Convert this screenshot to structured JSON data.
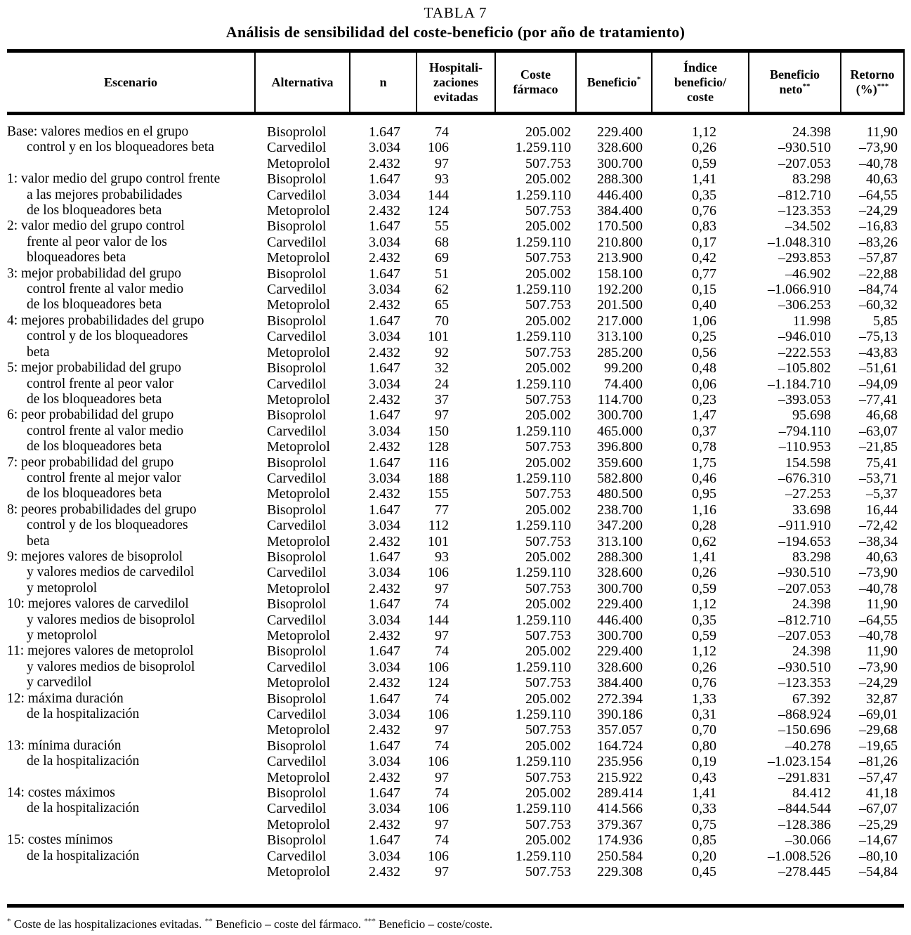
{
  "page": {
    "title": "TABLA 7",
    "subtitle": "Análisis de sensibilidad del coste-beneficio (por año de tratamiento)"
  },
  "colors": {
    "text": "#000000",
    "background": "#ffffff"
  },
  "table": {
    "columns": [
      {
        "id": "escenario",
        "lines": [
          "Escenario"
        ],
        "sup": ""
      },
      {
        "id": "alternativa",
        "lines": [
          "Alternativa"
        ],
        "sup": ""
      },
      {
        "id": "n",
        "lines": [
          "n"
        ],
        "sup": ""
      },
      {
        "id": "hospitalizaciones-evitadas",
        "lines": [
          "Hospitali-",
          "zaciones",
          "evitadas"
        ],
        "sup": ""
      },
      {
        "id": "coste-farmaco",
        "lines": [
          "Coste",
          "fármaco"
        ],
        "sup": ""
      },
      {
        "id": "beneficio",
        "lines": [
          "Beneficio"
        ],
        "sup": "*"
      },
      {
        "id": "indice-beneficio-coste",
        "lines": [
          "Índice",
          "beneficio/",
          "coste"
        ],
        "sup": ""
      },
      {
        "id": "beneficio-neto",
        "lines": [
          "Beneficio",
          "neto"
        ],
        "sup": "**"
      },
      {
        "id": "retorno",
        "lines": [
          "Retorno",
          "(%)"
        ],
        "sup": "***"
      }
    ],
    "scenarios": [
      {
        "label_lines": [
          "Base: valores medios en el grupo",
          "control y en los bloqueadores beta"
        ],
        "rows": [
          [
            "Bisoprolol",
            "1.647",
            "74",
            "205.002",
            "229.400",
            "1,12",
            "24.398",
            "11,90"
          ],
          [
            "Carvedilol",
            "3.034",
            "106",
            "1.259.110",
            "328.600",
            "0,26",
            "–930.510",
            "–73,90"
          ],
          [
            "Metoprolol",
            "2.432",
            "97",
            "507.753",
            "300.700",
            "0,59",
            "–207.053",
            "–40,78"
          ]
        ]
      },
      {
        "label_lines": [
          "1: valor medio del grupo control frente",
          "a las mejores probabilidades",
          "de los bloqueadores beta"
        ],
        "rows": [
          [
            "Bisoprolol",
            "1.647",
            "93",
            "205.002",
            "288.300",
            "1,41",
            "83.298",
            "40,63"
          ],
          [
            "Carvedilol",
            "3.034",
            "144",
            "1.259.110",
            "446.400",
            "0,35",
            "–812.710",
            "–64,55"
          ],
          [
            "Metoprolol",
            "2.432",
            "124",
            "507.753",
            "384.400",
            "0,76",
            "–123.353",
            "–24,29"
          ]
        ]
      },
      {
        "label_lines": [
          "2: valor medio del grupo control",
          "frente al peor valor de los",
          "bloqueadores beta"
        ],
        "rows": [
          [
            "Bisoprolol",
            "1.647",
            "55",
            "205.002",
            "170.500",
            "0,83",
            "–34.502",
            "–16,83"
          ],
          [
            "Carvedilol",
            "3.034",
            "68",
            "1.259.110",
            "210.800",
            "0,17",
            "–1.048.310",
            "–83,26"
          ],
          [
            "Metoprolol",
            "2.432",
            "69",
            "507.753",
            "213.900",
            "0,42",
            "–293.853",
            "–57,87"
          ]
        ]
      },
      {
        "label_lines": [
          "3: mejor probabilidad del grupo",
          "control frente al valor medio",
          "de los bloqueadores beta"
        ],
        "rows": [
          [
            "Bisoprolol",
            "1.647",
            "51",
            "205.002",
            "158.100",
            "0,77",
            "–46.902",
            "–22,88"
          ],
          [
            "Carvedilol",
            "3.034",
            "62",
            "1.259.110",
            "192.200",
            "0,15",
            "–1.066.910",
            "–84,74"
          ],
          [
            "Metoprolol",
            "2.432",
            "65",
            "507.753",
            "201.500",
            "0,40",
            "–306.253",
            "–60,32"
          ]
        ]
      },
      {
        "label_lines": [
          "4: mejores probabilidades del grupo",
          "control y de los bloqueadores",
          "beta"
        ],
        "rows": [
          [
            "Bisoprolol",
            "1.647",
            "70",
            "205.002",
            "217.000",
            "1,06",
            "11.998",
            "5,85"
          ],
          [
            "Carvedilol",
            "3.034",
            "101",
            "1.259.110",
            "313.100",
            "0,25",
            "–946.010",
            "–75,13"
          ],
          [
            "Metoprolol",
            "2.432",
            "92",
            "507.753",
            "285.200",
            "0,56",
            "–222.553",
            "–43,83"
          ]
        ]
      },
      {
        "label_lines": [
          "5: mejor probabilidad del grupo",
          "control frente al peor valor",
          "de los bloqueadores beta"
        ],
        "rows": [
          [
            "Bisoprolol",
            "1.647",
            "32",
            "205.002",
            "99.200",
            "0,48",
            "–105.802",
            "–51,61"
          ],
          [
            "Carvedilol",
            "3.034",
            "24",
            "1.259.110",
            "74.400",
            "0,06",
            "–1.184.710",
            "–94,09"
          ],
          [
            "Metoprolol",
            "2.432",
            "37",
            "507.753",
            "114.700",
            "0,23",
            "–393.053",
            "–77,41"
          ]
        ]
      },
      {
        "label_lines": [
          "6: peor probabilidad del grupo",
          "control frente al valor medio",
          "de los bloqueadores beta"
        ],
        "rows": [
          [
            "Bisoprolol",
            "1.647",
            "97",
            "205.002",
            "300.700",
            "1,47",
            "95.698",
            "46,68"
          ],
          [
            "Carvedilol",
            "3.034",
            "150",
            "1.259.110",
            "465.000",
            "0,37",
            "–794.110",
            "–63,07"
          ],
          [
            "Metoprolol",
            "2.432",
            "128",
            "507.753",
            "396.800",
            "0,78",
            "–110.953",
            "–21,85"
          ]
        ]
      },
      {
        "label_lines": [
          "7: peor probabilidad del grupo",
          "control frente al mejor valor",
          "de los bloqueadores beta"
        ],
        "rows": [
          [
            "Bisoprolol",
            "1.647",
            "116",
            "205.002",
            "359.600",
            "1,75",
            "154.598",
            "75,41"
          ],
          [
            "Carvedilol",
            "3.034",
            "188",
            "1.259.110",
            "582.800",
            "0,46",
            "–676.310",
            "–53,71"
          ],
          [
            "Metoprolol",
            "2.432",
            "155",
            "507.753",
            "480.500",
            "0,95",
            "–27.253",
            "–5,37"
          ]
        ]
      },
      {
        "label_lines": [
          "8: peores probabilidades del grupo",
          "control y de los bloqueadores",
          "beta"
        ],
        "rows": [
          [
            "Bisoprolol",
            "1.647",
            "77",
            "205.002",
            "238.700",
            "1,16",
            "33.698",
            "16,44"
          ],
          [
            "Carvedilol",
            "3.034",
            "112",
            "1.259.110",
            "347.200",
            "0,28",
            "–911.910",
            "–72,42"
          ],
          [
            "Metoprolol",
            "2.432",
            "101",
            "507.753",
            "313.100",
            "0,62",
            "–194.653",
            "–38,34"
          ]
        ]
      },
      {
        "label_lines": [
          "9: mejores valores de bisoprolol",
          "y valores medios de carvedilol",
          "y metoprolol"
        ],
        "rows": [
          [
            "Bisoprolol",
            "1.647",
            "93",
            "205.002",
            "288.300",
            "1,41",
            "83.298",
            "40,63"
          ],
          [
            "Carvedilol",
            "3.034",
            "106",
            "1.259.110",
            "328.600",
            "0,26",
            "–930.510",
            "–73,90"
          ],
          [
            "Metoprolol",
            "2.432",
            "97",
            "507.753",
            "300.700",
            "0,59",
            "–207.053",
            "–40,78"
          ]
        ]
      },
      {
        "label_lines": [
          "10: mejores valores de carvedilol",
          "y valores medios de bisoprolol",
          "y metoprolol"
        ],
        "rows": [
          [
            "Bisoprolol",
            "1.647",
            "74",
            "205.002",
            "229.400",
            "1,12",
            "24.398",
            "11,90"
          ],
          [
            "Carvedilol",
            "3.034",
            "144",
            "1.259.110",
            "446.400",
            "0,35",
            "–812.710",
            "–64,55"
          ],
          [
            "Metoprolol",
            "2.432",
            "97",
            "507.753",
            "300.700",
            "0,59",
            "–207.053",
            "–40,78"
          ]
        ]
      },
      {
        "label_lines": [
          "11: mejores valores de metoprolol",
          "y valores medios de bisoprolol",
          "y carvedilol"
        ],
        "rows": [
          [
            "Bisoprolol",
            "1.647",
            "74",
            "205.002",
            "229.400",
            "1,12",
            "24.398",
            "11,90"
          ],
          [
            "Carvedilol",
            "3.034",
            "106",
            "1.259.110",
            "328.600",
            "0,26",
            "–930.510",
            "–73,90"
          ],
          [
            "Metoprolol",
            "2.432",
            "124",
            "507.753",
            "384.400",
            "0,76",
            "–123.353",
            "–24,29"
          ]
        ]
      },
      {
        "label_lines": [
          "12: máxima duración",
          "de la hospitalización"
        ],
        "rows": [
          [
            "Bisoprolol",
            "1.647",
            "74",
            "205.002",
            "272.394",
            "1,33",
            "67.392",
            "32,87"
          ],
          [
            "Carvedilol",
            "3.034",
            "106",
            "1.259.110",
            "390.186",
            "0,31",
            "–868.924",
            "–69,01"
          ],
          [
            "Metoprolol",
            "2.432",
            "97",
            "507.753",
            "357.057",
            "0,70",
            "–150.696",
            "–29,68"
          ]
        ]
      },
      {
        "label_lines": [
          "13: mínima duración",
          "de la hospitalización"
        ],
        "rows": [
          [
            "Bisoprolol",
            "1.647",
            "74",
            "205.002",
            "164.724",
            "0,80",
            "–40.278",
            "–19,65"
          ],
          [
            "Carvedilol",
            "3.034",
            "106",
            "1.259.110",
            "235.956",
            "0,19",
            "–1.023.154",
            "–81,26"
          ],
          [
            "Metoprolol",
            "2.432",
            "97",
            "507.753",
            "215.922",
            "0,43",
            "–291.831",
            "–57,47"
          ]
        ]
      },
      {
        "label_lines": [
          "14: costes máximos",
          "de la hospitalización"
        ],
        "rows": [
          [
            "Bisoprolol",
            "1.647",
            "74",
            "205.002",
            "289.414",
            "1,41",
            "84.412",
            "41,18"
          ],
          [
            "Carvedilol",
            "3.034",
            "106",
            "1.259.110",
            "414.566",
            "0,33",
            "–844.544",
            "–67,07"
          ],
          [
            "Metoprolol",
            "2.432",
            "97",
            "507.753",
            "379.367",
            "0,75",
            "–128.386",
            "–25,29"
          ]
        ]
      },
      {
        "label_lines": [
          "15: costes mínimos",
          "de la hospitalización"
        ],
        "rows": [
          [
            "Bisoprolol",
            "1.647",
            "74",
            "205.002",
            "174.936",
            "0,85",
            "–30.066",
            "–14,67"
          ],
          [
            "Carvedilol",
            "3.034",
            "106",
            "1.259.110",
            "250.584",
            "0,20",
            "–1.008.526",
            "–80,10"
          ],
          [
            "Metoprolol",
            "2.432",
            "97",
            "507.753",
            "229.308",
            "0,45",
            "–278.445",
            "–54,84"
          ]
        ]
      }
    ]
  },
  "footnote": [
    {
      "sup": "*",
      "text": "Coste de las hospitalizaciones evitadas."
    },
    {
      "sup": "**",
      "text": "Beneficio – coste del fármaco."
    },
    {
      "sup": "***",
      "text": "Beneficio – coste/coste."
    }
  ]
}
